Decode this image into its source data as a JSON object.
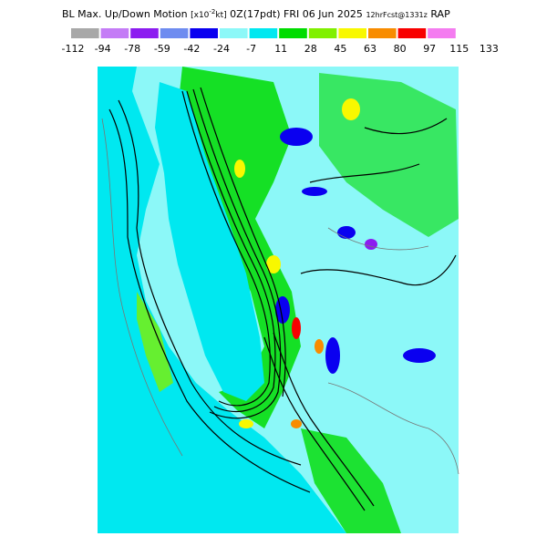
{
  "header": {
    "title": "BL Max. Up/Down Motion",
    "units_prefix": "[x10",
    "units_exp": "-2",
    "units_suffix": "kt]",
    "valid": "0Z(17pdt) FRI 06 Jun 2025",
    "forecast": "12hrFcst@1331z",
    "model": "RAP"
  },
  "colorbar": {
    "colors": [
      "#a8a8a8",
      "#c47cf6",
      "#8c1cf0",
      "#6e8cf0",
      "#0a00f0",
      "#8cf8f8",
      "#00e8f0",
      "#00dc00",
      "#80f000",
      "#f8f800",
      "#f88c00",
      "#f80000",
      "#f47cf0"
    ],
    "labels": [
      -112,
      -94,
      -78,
      -59,
      -42,
      -24,
      -7,
      11,
      28,
      45,
      63,
      80,
      97,
      115,
      133
    ]
  }
}
